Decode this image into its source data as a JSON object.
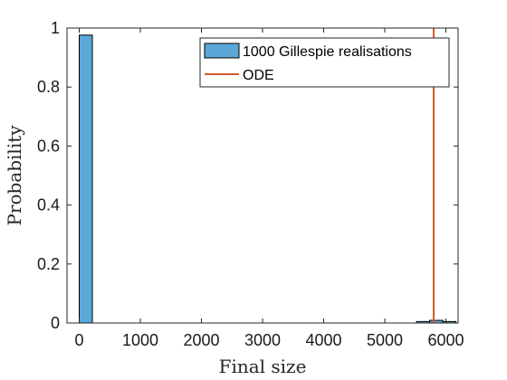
{
  "chart_data": {
    "type": "bar",
    "xlabel": "Final size",
    "ylabel": "Probability",
    "xlim": [
      -200,
      6200
    ],
    "ylim": [
      0,
      1
    ],
    "xticks": [
      0,
      1000,
      2000,
      3000,
      4000,
      5000,
      6000
    ],
    "yticks": [
      0,
      0.2,
      0.4,
      0.6,
      0.8,
      1
    ],
    "ytick_labels": [
      "0",
      "0.2",
      "0.4",
      "0.6",
      "0.8",
      "1"
    ],
    "grid": false,
    "box": true,
    "legend_position": "top-right",
    "series": [
      {
        "name": "1000 Gillespie realisations",
        "kind": "histogram",
        "bin_width": 215,
        "bins": [
          {
            "x0": 0,
            "x1": 215,
            "value": 0.976
          },
          {
            "x0": 5520,
            "x1": 5735,
            "value": 0.005
          },
          {
            "x0": 5735,
            "x1": 5950,
            "value": 0.009
          },
          {
            "x0": 5950,
            "x1": 6165,
            "value": 0.005
          }
        ],
        "color": "#5BA8D8"
      },
      {
        "name": "ODE",
        "kind": "vertical-line",
        "x": 5800,
        "color": "#D9592A"
      }
    ]
  }
}
